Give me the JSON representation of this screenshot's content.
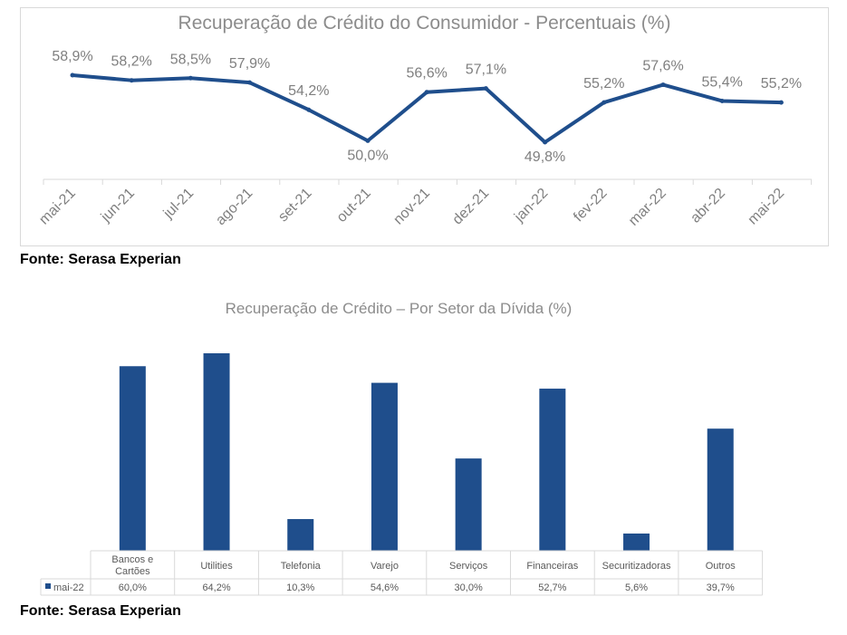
{
  "charts": [
    {
      "title": "Recuperação de Crédito do Consumidor - Percentuais (%)",
      "source": "Fonte: Serasa Experian"
    },
    {
      "title": "Recuperação de Crédito – Por Setor da Dívida (%)",
      "source": "Fonte: Serasa Experian"
    }
  ],
  "colors": {
    "series": "#1f4e8c",
    "title": "#8c8c8c",
    "label": "#7f7f7f",
    "grid": "#d9d9d9"
  },
  "chart_data": [
    {
      "type": "line",
      "title": "Recuperação de Crédito do Consumidor - Percentuais (%)",
      "xlabel": "",
      "ylabel": "",
      "categories": [
        "mai-21",
        "jun-21",
        "jul-21",
        "ago-21",
        "set-21",
        "out-21",
        "nov-21",
        "dez-21",
        "jan-22",
        "fev-22",
        "mar-22",
        "abr-22",
        "mai-22"
      ],
      "values": [
        58.9,
        58.2,
        58.5,
        57.9,
        54.2,
        50.0,
        56.6,
        57.1,
        49.8,
        55.2,
        57.6,
        55.4,
        55.2
      ],
      "labels": [
        "58,9%",
        "58,2%",
        "58,5%",
        "57,9%",
        "54,2%",
        "50,0%",
        "56,6%",
        "57,1%",
        "49,8%",
        "55,2%",
        "57,6%",
        "55,4%",
        "55,2%"
      ],
      "grid": false,
      "legend": "none"
    },
    {
      "type": "bar",
      "title": "Recuperação de Crédito – Por Setor da Dívida (%)",
      "categories": [
        "Bancos e Cartões",
        "Utilities",
        "Telefonia",
        "Varejo",
        "Serviços",
        "Financeiras",
        "Securitizadoras",
        "Outros"
      ],
      "series": [
        {
          "name": "mai-22",
          "values": [
            60.0,
            64.2,
            10.3,
            54.6,
            30.0,
            52.7,
            5.6,
            39.7
          ],
          "labels": [
            "60,0%",
            "64,2%",
            "10,3%",
            "54,6%",
            "30,0%",
            "52,7%",
            "5,6%",
            "39,7%"
          ]
        }
      ],
      "grid": false,
      "legend": "data table"
    }
  ]
}
